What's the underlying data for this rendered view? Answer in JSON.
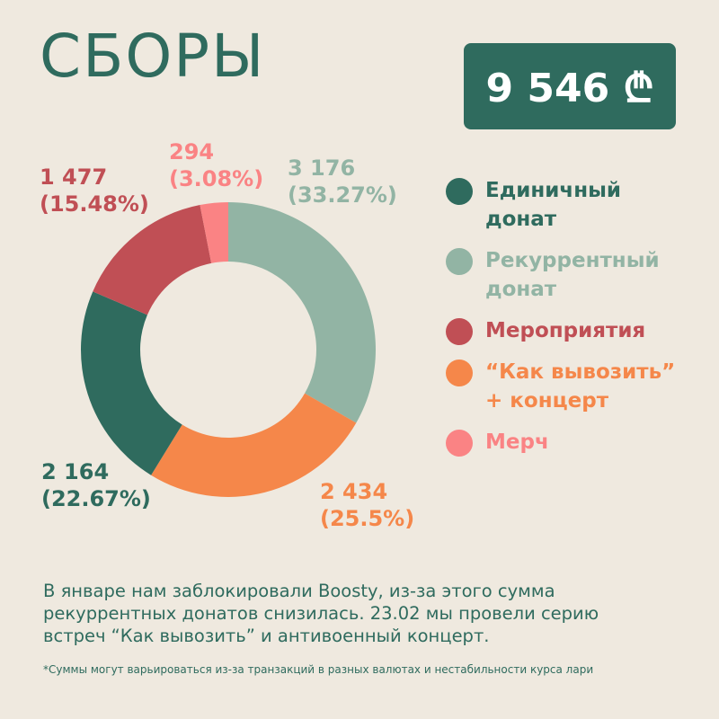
{
  "title": "СБОРЫ",
  "total": "9 546 ₾",
  "chart_data": {
    "type": "pie",
    "slices": [
      {
        "name": "Рекуррентный донат",
        "value": 3176,
        "value_label": "3 176",
        "percent_label": "(33.27%)",
        "color": "#92b4a4"
      },
      {
        "name": "“Как вывозить” + концерт",
        "value": 2434,
        "value_label": "2 434",
        "percent_label": "(25.5%)",
        "color": "#f5874a"
      },
      {
        "name": "Единичный донат",
        "value": 2164,
        "value_label": "2 164",
        "percent_label": "(22.67%)",
        "color": "#2f6b5e"
      },
      {
        "name": "Мероприятия",
        "value": 1477,
        "value_label": "1 477",
        "percent_label": "(15.48%)",
        "color": "#c04f55"
      },
      {
        "name": "Мерч",
        "value": 294,
        "value_label": "294",
        "percent_label": "(3.08%)",
        "color": "#fa8384"
      }
    ]
  },
  "legend": [
    {
      "label": "Единичный\nдонат",
      "color": "#2f6b5e"
    },
    {
      "label": "Рекуррентный\nдонат",
      "color": "#92b4a4"
    },
    {
      "label": "Мероприятия",
      "color": "#c04f55"
    },
    {
      "label": "“Как вывозить”\n+ концерт",
      "color": "#f5874a"
    },
    {
      "label": "Мерч",
      "color": "#fa8384"
    }
  ],
  "note": "В январе нам заблокировали Boosty, из-за этого сумма рекуррентных донатов снизилась. 23.02 мы провели серию встреч “Как вывозить” и антивоенный концерт.",
  "footnote": "*Суммы могут варьироваться из-за транзакций в разных валютах и нестабильности курса лари"
}
